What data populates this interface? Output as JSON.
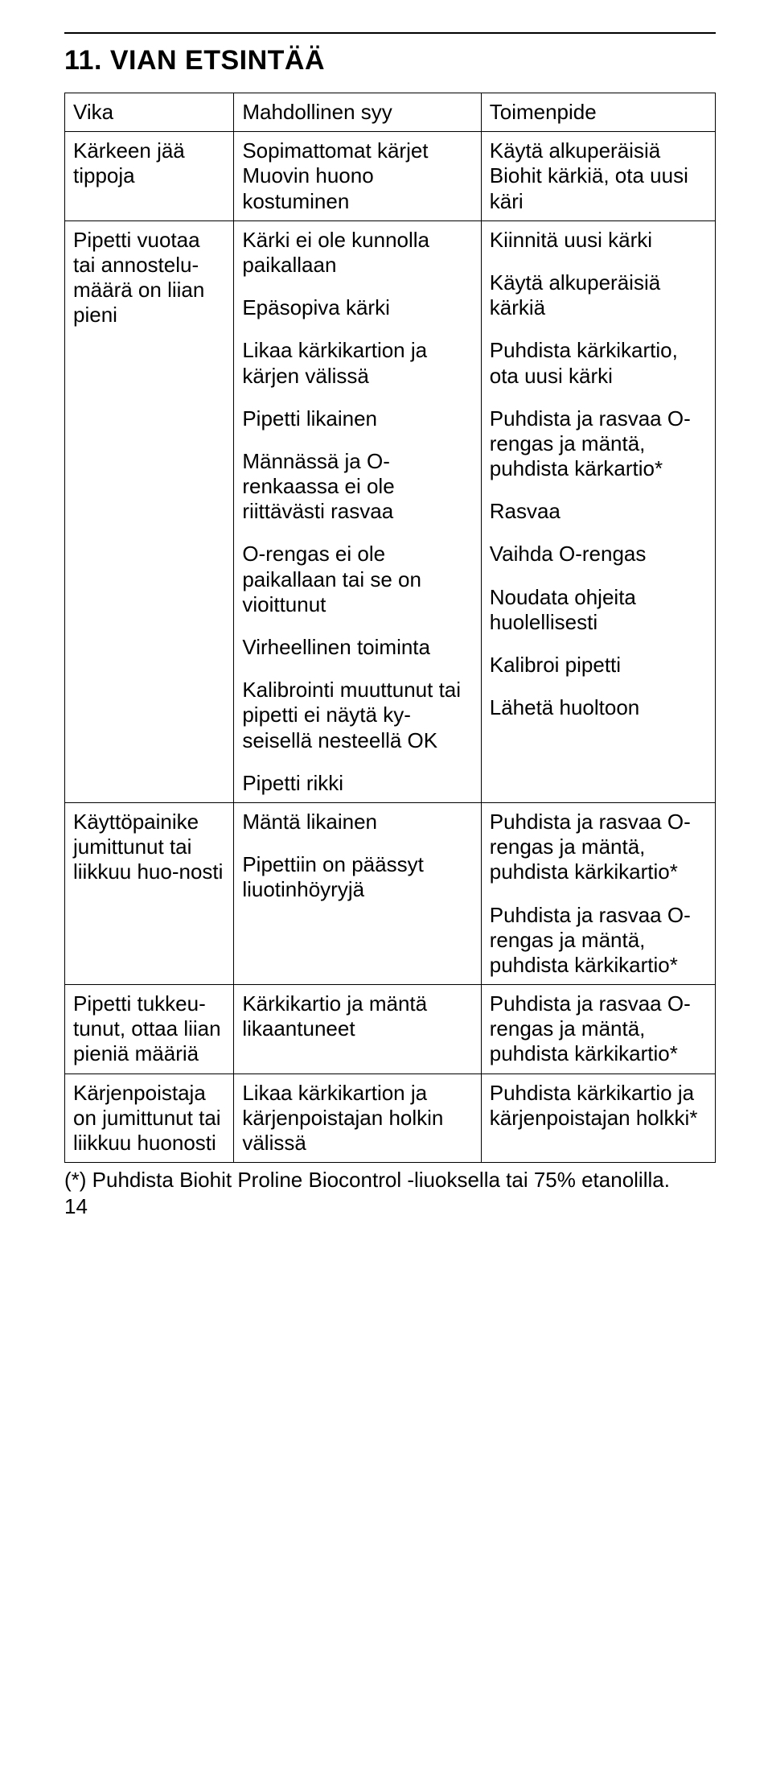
{
  "heading": "11. VIAN ETSINTÄÄ",
  "headers": {
    "col1": "Vika",
    "col2": "Mahdollinen syy",
    "col3": "Toimenpide"
  },
  "rows": [
    {
      "fault": "Kärkeen jää tippoja",
      "causes": [
        "Sopimattomat kärjet Muovin huono kostuminen"
      ],
      "actions": [
        "Käytä alkuperäisiä Biohit kärkiä, ota uusi käri"
      ]
    },
    {
      "fault": "Pipetti vuotaa tai annostelu-määrä on liian pieni",
      "causes": [
        "Kärki ei ole kunnolla paikallaan",
        "Epäsopiva kärki",
        "Likaa kärkikartion ja kärjen välissä",
        "Pipetti likainen",
        "Männässä ja O-renkaassa ei ole riittävästi rasvaa",
        "O-rengas ei ole paikallaan tai se on vioittunut",
        "Virheellinen toiminta",
        "Kalibrointi muuttunut tai pipetti ei näytä ky-seisellä nesteellä OK",
        "Pipetti rikki"
      ],
      "actions": [
        "Kiinnitä uusi kärki",
        "Käytä alkuperäisiä kärkiä",
        "Puhdista kärkikartio, ota uusi kärki",
        "Puhdista ja rasvaa O-rengas ja mäntä, puhdista kärkartio*",
        "Rasvaa",
        "Vaihda O-rengas",
        "Noudata ohjeita huolellisesti",
        "Kalibroi pipetti",
        "Lähetä huoltoon"
      ]
    },
    {
      "fault": "Käyttöpainike jumittunut tai liikkuu huo-nosti",
      "causes": [
        "Mäntä likainen",
        "Pipettiin on päässyt liuotinhöyryjä"
      ],
      "actions": [
        "Puhdista ja rasvaa O-rengas ja mäntä, puhdista kärkikartio*",
        "Puhdista ja rasvaa O-rengas ja mäntä, puhdista kärkikartio*"
      ]
    },
    {
      "fault": "Pipetti tukkeu-tunut, ottaa liian pieniä määriä",
      "causes": [
        "Kärkikartio ja mäntä likaantuneet"
      ],
      "actions": [
        "Puhdista ja rasvaa O-rengas ja mäntä, puhdista kärkikartio*"
      ]
    },
    {
      "fault": "Kärjenpoistaja on jumittunut tai liikkuu huonosti",
      "causes": [
        "Likaa kärkikartion ja kärjenpoistajan holkin välissä"
      ],
      "actions": [
        "Puhdista kärkikartio ja kärjenpoistajan holkki*"
      ]
    }
  ],
  "footnote": "(*) Puhdista Biohit Proline Biocontrol -liuoksella tai 75% etanolilla.",
  "pagenum": "14"
}
